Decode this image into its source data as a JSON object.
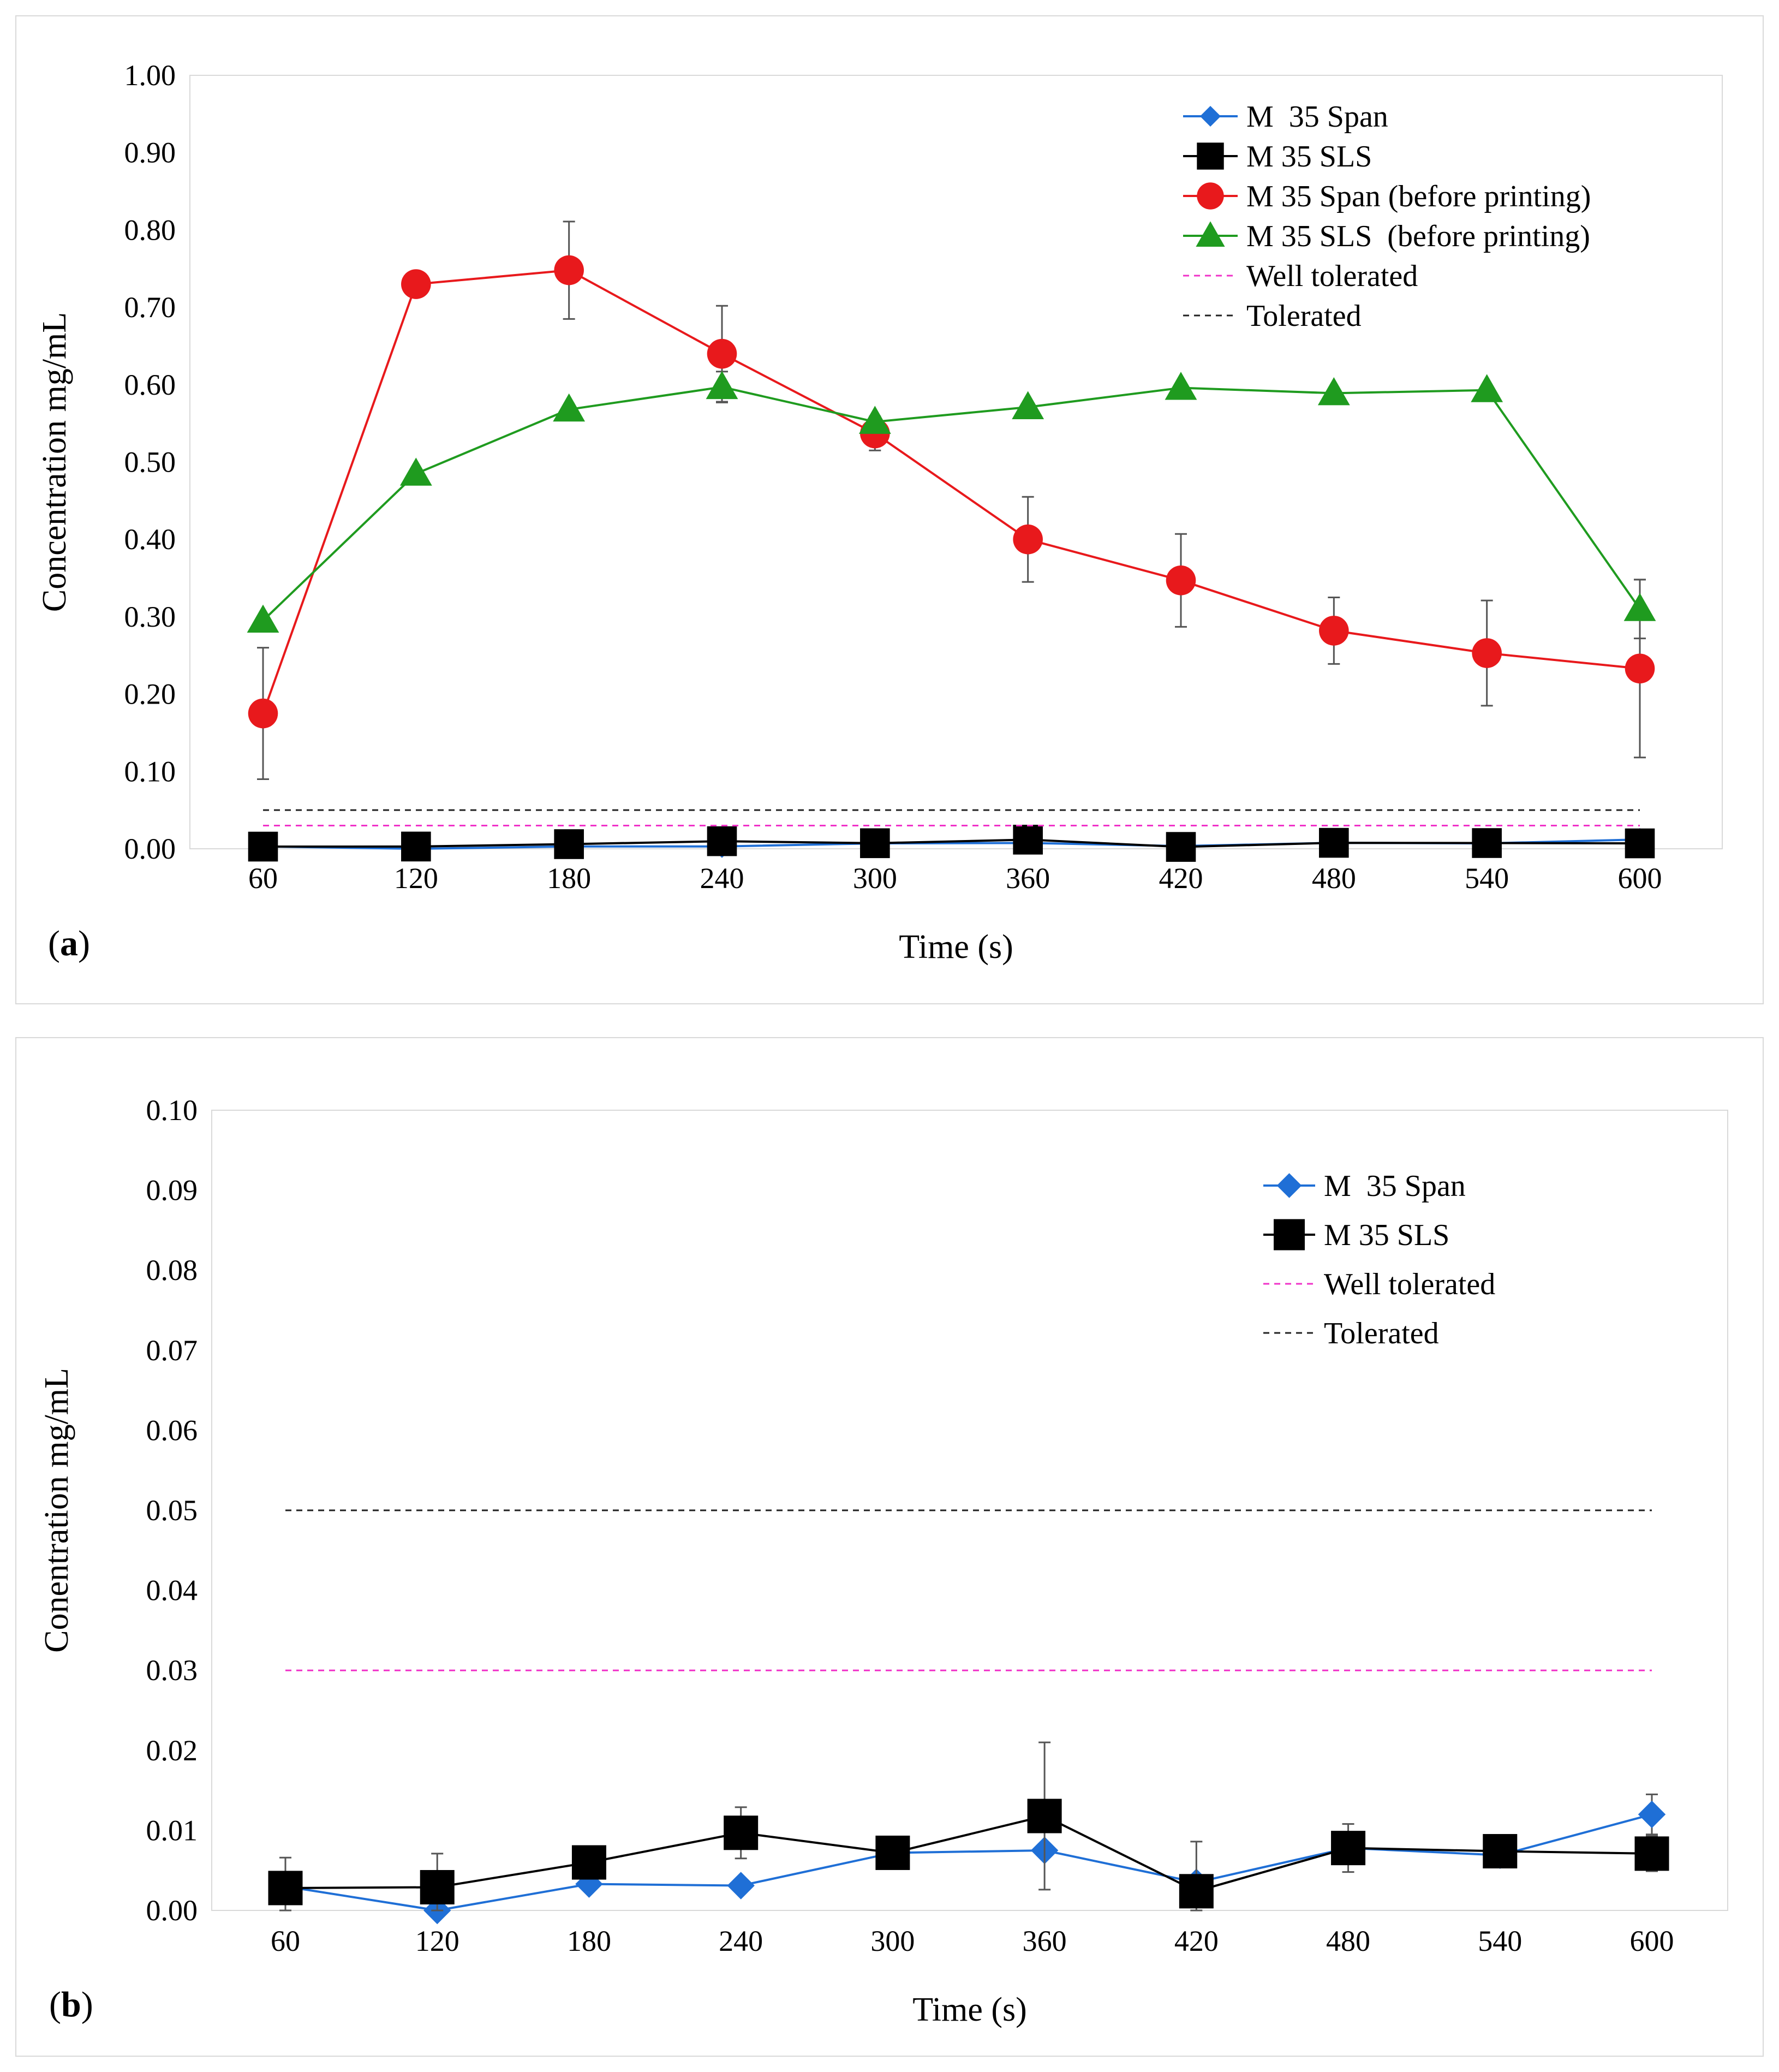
{
  "chart_data": [
    {
      "type": "line",
      "panel_label": "a",
      "xlabel": "Time (s)",
      "ylabel": "Concentration mg/mL",
      "categories": [
        "60",
        "120",
        "180",
        "240",
        "300",
        "360",
        "420",
        "480",
        "540",
        "600"
      ],
      "ylim": [
        0,
        1.0
      ],
      "yticks": [
        "0.00",
        "0.10",
        "0.20",
        "0.30",
        "0.40",
        "0.50",
        "0.60",
        "0.70",
        "0.80",
        "0.90",
        "1.00"
      ],
      "legend_position": "top-right",
      "series": [
        {
          "name": "M  35 Span",
          "color": "#1f6fd6",
          "marker": "diamond",
          "marker_size": 10,
          "values": [
            0.003,
            0.0,
            0.003,
            0.003,
            0.007,
            0.0075,
            0.0035,
            0.0077,
            0.007,
            0.012
          ],
          "errors": []
        },
        {
          "name": "M 35 SLS",
          "color": "#000000",
          "marker": "square",
          "marker_size": 13,
          "values": [
            0.0028,
            0.0029,
            0.006,
            0.0098,
            0.0072,
            0.0118,
            0.0024,
            0.0077,
            0.0074,
            0.007
          ],
          "errors": []
        },
        {
          "name": "M 35 Span (before printing)",
          "color": "#e8191c",
          "marker": "circle",
          "marker_size": 13,
          "values": [
            0.175,
            0.73,
            0.748,
            0.64,
            0.537,
            0.4,
            0.347,
            0.282,
            0.253,
            0.233
          ],
          "errors": [
            0.085,
            0,
            0.063,
            0.062,
            0.022,
            0.055,
            0.06,
            0.043,
            0.068,
            0.115
          ]
        },
        {
          "name": "M 35 SLS  (before printing)",
          "color": "#1f9b1f",
          "marker": "triangle",
          "marker_size": 14,
          "values": [
            0.295,
            0.485,
            0.568,
            0.597,
            0.552,
            0.571,
            0.596,
            0.589,
            0.593,
            0.31
          ],
          "errors": [
            0,
            0,
            0,
            0.02,
            0,
            0,
            0,
            0,
            0,
            0.038
          ]
        },
        {
          "name": "Well tolerated",
          "color": "#f032c8",
          "style": "dashed",
          "constant": 0.03
        },
        {
          "name": "Tolerated",
          "color": "#222222",
          "style": "dashed",
          "constant": 0.05
        }
      ]
    },
    {
      "type": "line",
      "panel_label": "b",
      "xlabel": "Time (s)",
      "ylabel": "Conentration mg/mL",
      "categories": [
        "60",
        "120",
        "180",
        "240",
        "300",
        "360",
        "420",
        "480",
        "540",
        "600"
      ],
      "ylim": [
        0,
        0.1
      ],
      "yticks": [
        "0.00",
        "0.01",
        "0.02",
        "0.03",
        "0.04",
        "0.05",
        "0.06",
        "0.07",
        "0.08",
        "0.09",
        "0.10"
      ],
      "legend_position": "top-right",
      "series": [
        {
          "name": "M  35 Span",
          "color": "#1f6fd6",
          "marker": "diamond",
          "marker_size": 12,
          "values": [
            0.003,
            0.0,
            0.0033,
            0.0031,
            0.0072,
            0.0075,
            0.0035,
            0.0078,
            0.0069,
            0.012
          ],
          "errors": [
            0,
            0,
            0,
            0,
            0,
            0,
            0,
            0,
            0,
            0.0025
          ]
        },
        {
          "name": "M 35 SLS",
          "color": "#000000",
          "marker": "square",
          "marker_size": 15,
          "values": [
            0.0028,
            0.0029,
            0.006,
            0.0097,
            0.0072,
            0.0118,
            0.0024,
            0.0078,
            0.0074,
            0.0071
          ],
          "errors": [
            0.0038,
            0.0042,
            0.0018,
            0.0032,
            0.001,
            0.0092,
            0.0062,
            0.003,
            0.0019,
            0.0022
          ]
        },
        {
          "name": "Well tolerated",
          "color": "#f032c8",
          "style": "dashed",
          "constant": 0.03
        },
        {
          "name": "Tolerated",
          "color": "#222222",
          "style": "dashed",
          "constant": 0.05
        }
      ]
    }
  ]
}
